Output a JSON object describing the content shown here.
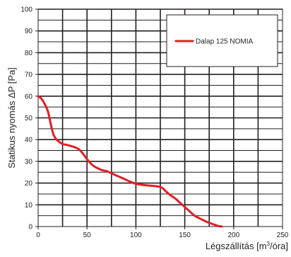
{
  "chart_data": {
    "type": "line",
    "xlabel_main": "Légszállítás",
    "xlabel_unit_pre": " [m",
    "xlabel_unit_sup": "3",
    "xlabel_unit_post": "/óra]",
    "ylabel": "Statikus nyomás ΔP [Pa]",
    "xlim": [
      0,
      250
    ],
    "ylim": [
      0,
      100
    ],
    "x_ticks": [
      "0",
      "50",
      "100",
      "150",
      "200",
      "250"
    ],
    "y_ticks": [
      "0",
      "10",
      "20",
      "30",
      "40",
      "50",
      "60",
      "70",
      "80",
      "90",
      "100"
    ],
    "grid": true,
    "legend_position": "top-right",
    "series": [
      {
        "name": "Dalap 125 NOMIA",
        "color": "#e31e24",
        "x": [
          0,
          3,
          6,
          10,
          13,
          16,
          20,
          25,
          30,
          40,
          45,
          50,
          55,
          60,
          65,
          70,
          75,
          80,
          85,
          90,
          95,
          100,
          105,
          110,
          115,
          120,
          125,
          128,
          130,
          135,
          140,
          145,
          150,
          155,
          160,
          165,
          170,
          175,
          180,
          185,
          188
        ],
        "y": [
          60,
          59,
          57,
          53,
          47,
          42,
          39.5,
          38,
          37.5,
          36,
          34,
          31,
          28.5,
          27,
          26,
          25.5,
          24.5,
          23.5,
          22.5,
          21.5,
          20.5,
          19.7,
          19.3,
          19,
          18.8,
          18.6,
          18.2,
          17.5,
          16.5,
          14.5,
          13,
          11,
          9,
          7,
          5,
          3.8,
          2.7,
          1.7,
          0.9,
          0.2,
          0
        ]
      }
    ]
  }
}
